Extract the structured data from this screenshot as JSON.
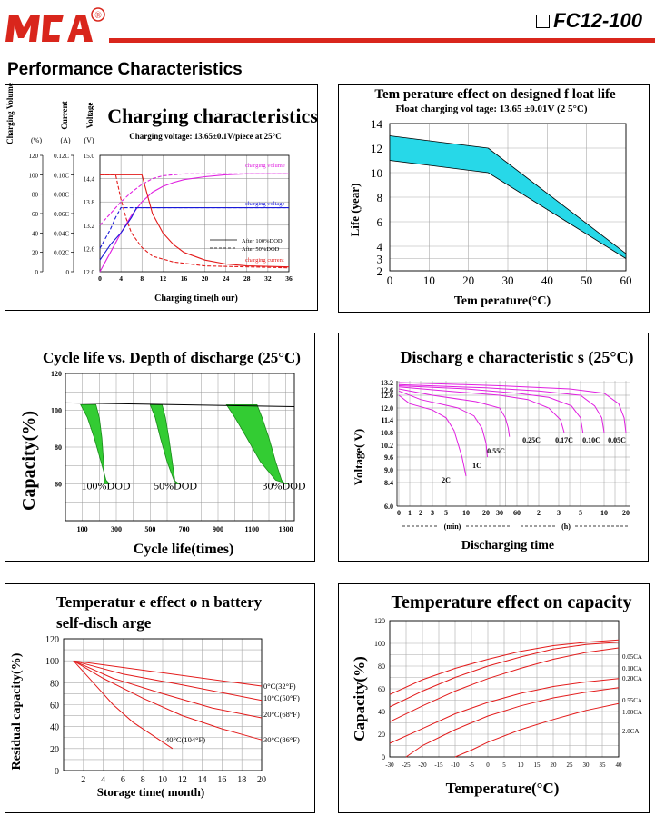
{
  "header": {
    "brand": "MCA",
    "registered": "®",
    "model": "FC12-100"
  },
  "section_title": "Performance Characteristics",
  "colors": {
    "brand_red": "#d9261c",
    "magenta": "#e020e0",
    "blue": "#1a1ad8",
    "red": "#e31c1c",
    "green": "#33cc33",
    "cyan": "#27d8e8"
  },
  "chart_data": [
    {
      "id": "charging",
      "type": "line",
      "title": "Charging characteristics",
      "subtitle": "Charging voltage: 13.65±0.1V/piece at 25°C",
      "xlabel": "Charging time(h our)",
      "axis_heads": [
        "Charging Volume",
        "Current",
        "Voltage"
      ],
      "axis_units": [
        "(%)",
        "(A)",
        "(V)"
      ],
      "xticks": [
        0,
        4,
        8,
        12,
        16,
        20,
        24,
        28,
        32,
        36
      ],
      "xlim": [
        0,
        36
      ],
      "volume_ticks": [
        0,
        20,
        40,
        60,
        80,
        100,
        120
      ],
      "current_ticks": [
        "0",
        "0.02C",
        "0.04C",
        "0.06C",
        "0.08C",
        "0.10C",
        "0.12C"
      ],
      "voltage_ticks": [
        12.0,
        12.6,
        13.2,
        13.8,
        14.4,
        15.0
      ],
      "legend": [
        "After 100%DOD",
        "After 50%DOD"
      ],
      "annotations": [
        "charging volume",
        "charging voltage",
        "charging current"
      ],
      "series": [
        {
          "name": "charging volume",
          "axis": "volume",
          "style": "solid",
          "x": [
            0,
            2,
            4,
            6,
            8,
            10,
            12,
            14,
            16,
            20,
            24,
            28,
            36
          ],
          "y": [
            0,
            20,
            40,
            58,
            72,
            82,
            88,
            92,
            95,
            98,
            100,
            101,
            101
          ]
        },
        {
          "name": "charging volume",
          "axis": "volume",
          "style": "dashed",
          "x": [
            0,
            2,
            4,
            6,
            8,
            10,
            12,
            16,
            20,
            36
          ],
          "y": [
            48,
            60,
            72,
            82,
            90,
            96,
            99,
            101,
            101,
            101
          ]
        },
        {
          "name": "charging voltage",
          "axis": "voltage",
          "style": "solid",
          "x": [
            0,
            2,
            4,
            6,
            7,
            8,
            12,
            16,
            20,
            36
          ],
          "y": [
            12.3,
            12.7,
            13.0,
            13.4,
            13.65,
            13.65,
            13.65,
            13.65,
            13.65,
            13.65
          ]
        },
        {
          "name": "charging voltage",
          "axis": "voltage",
          "style": "dashed",
          "x": [
            0,
            2,
            3,
            4,
            6,
            8,
            12,
            20,
            36
          ],
          "y": [
            12.6,
            13.1,
            13.4,
            13.65,
            13.65,
            13.65,
            13.65,
            13.65,
            13.65
          ]
        },
        {
          "name": "charging current",
          "axis": "current",
          "style": "solid",
          "x": [
            0,
            8,
            9,
            10,
            12,
            14,
            16,
            20,
            24,
            28,
            36
          ],
          "y": [
            0.1,
            0.1,
            0.08,
            0.06,
            0.04,
            0.028,
            0.02,
            0.012,
            0.008,
            0.006,
            0.005
          ]
        },
        {
          "name": "charging current",
          "axis": "current",
          "style": "dashed",
          "x": [
            0,
            3,
            4,
            5,
            6,
            8,
            10,
            14,
            20,
            36
          ],
          "y": [
            0.1,
            0.1,
            0.075,
            0.055,
            0.04,
            0.025,
            0.016,
            0.01,
            0.006,
            0.004
          ]
        }
      ]
    },
    {
      "id": "float_life",
      "type": "area",
      "title": "Tem perature effect on designed f loat life",
      "subtitle": "Float charging vol tage: 13.65 ±0.01V (2 5°C)",
      "xlabel": "Tem perature(°C)",
      "ylabel": "Life (year)",
      "xticks": [
        0,
        10,
        20,
        30,
        40,
        50,
        60
      ],
      "yticks": [
        2,
        3,
        4,
        6,
        8,
        10,
        12,
        14
      ],
      "xlim": [
        0,
        60
      ],
      "ylim": [
        2,
        14
      ],
      "band_upper": {
        "x": [
          0,
          25,
          60
        ],
        "y": [
          13,
          12,
          3.4
        ]
      },
      "band_lower": {
        "x": [
          0,
          25,
          60
        ],
        "y": [
          11,
          10,
          3.0
        ]
      }
    },
    {
      "id": "cycle_life",
      "type": "area",
      "title": "Cycle life vs. Depth of discharge (25°C)",
      "xlabel": "Cycle life(times)",
      "ylabel": "Capacity(%)",
      "xticks": [
        100,
        300,
        500,
        700,
        900,
        1100,
        1300
      ],
      "yticks": [
        60,
        80,
        100,
        120
      ],
      "xlim": [
        0,
        1350
      ],
      "ylim": [
        40,
        120
      ],
      "reference_line": {
        "x": [
          0,
          1350
        ],
        "y": [
          104,
          102
        ]
      },
      "bands": [
        {
          "label": "100%DOD",
          "upper": {
            "x": [
              90,
              130,
              170,
              210,
              240,
              260
            ],
            "y": [
              103,
              96,
              85,
              72,
              62,
              60
            ]
          },
          "lower": {
            "x": [
              180,
              200,
              215,
              225,
              230,
              230
            ],
            "y": [
              103,
              96,
              85,
              72,
              62,
              60
            ]
          }
        },
        {
          "label": "50%DOD",
          "upper": {
            "x": [
              500,
              530,
              560,
              600,
              640,
              670
            ],
            "y": [
              103,
              96,
              85,
              72,
              62,
              60
            ]
          },
          "lower": {
            "x": [
              570,
              590,
              610,
              630,
              645,
              650
            ],
            "y": [
              103,
              96,
              85,
              72,
              62,
              60
            ]
          }
        },
        {
          "label": "30%DOD",
          "upper": {
            "x": [
              950,
              1000,
              1070,
              1150,
              1240,
              1310
            ],
            "y": [
              103,
              96,
              85,
              72,
              62,
              60
            ]
          },
          "lower": {
            "x": [
              1130,
              1160,
              1200,
              1240,
              1275,
              1295
            ],
            "y": [
              103,
              96,
              85,
              72,
              62,
              60
            ]
          }
        }
      ]
    },
    {
      "id": "discharge",
      "type": "line",
      "title": "Discharg e characteristic s (25°C)",
      "xlabel": "Discharging time",
      "ylabel": "Voltage( V)",
      "yticks": [
        6.0,
        8.4,
        9.0,
        9.6,
        10.2,
        10.8,
        11.4,
        12.0,
        12.6,
        13.2
      ],
      "xtick_labels": [
        "0",
        "1",
        "2",
        "3",
        "5",
        "10",
        "20",
        "30",
        "60",
        "2",
        "3",
        "5",
        "10",
        "20"
      ],
      "xunits": [
        "(min)",
        "(h)"
      ],
      "curve_labels": [
        "2C",
        "1C",
        "0.55C",
        "0.25C",
        "0.17C",
        "0.10C",
        "0.05C"
      ],
      "series": [
        {
          "name": "2C",
          "t_min": [
            0,
            1,
            3,
            5,
            7,
            9,
            10
          ],
          "y": [
            12.6,
            12.2,
            11.9,
            11.5,
            10.9,
            9.6,
            8.7
          ]
        },
        {
          "name": "1C",
          "t_min": [
            0,
            2,
            8,
            14,
            18,
            20,
            21
          ],
          "y": [
            12.8,
            12.4,
            12.0,
            11.6,
            11.0,
            10.3,
            9.6
          ]
        },
        {
          "name": "0.55C",
          "t_min": [
            0,
            3,
            15,
            30,
            40,
            45,
            47
          ],
          "y": [
            12.9,
            12.6,
            12.3,
            12.0,
            11.5,
            11.0,
            10.6
          ]
        },
        {
          "name": "0.25C",
          "t_min": [
            0,
            5,
            30,
            90,
            150,
            190,
            210
          ],
          "y": [
            13.0,
            12.8,
            12.6,
            12.4,
            12.0,
            11.4,
            10.8
          ]
        },
        {
          "name": "0.17C",
          "t_min": [
            0,
            10,
            60,
            150,
            250,
            300,
            330
          ],
          "y": [
            13.05,
            12.9,
            12.7,
            12.5,
            12.1,
            11.5,
            10.8
          ]
        },
        {
          "name": "0.10C",
          "t_min": [
            0,
            20,
            120,
            300,
            480,
            570,
            600
          ],
          "y": [
            13.1,
            12.95,
            12.8,
            12.6,
            12.1,
            11.5,
            10.8
          ]
        },
        {
          "name": "0.05C",
          "t_min": [
            0,
            30,
            240,
            600,
            1000,
            1150,
            1200
          ],
          "y": [
            13.2,
            13.05,
            12.9,
            12.7,
            12.2,
            11.5,
            10.8
          ]
        }
      ]
    },
    {
      "id": "self_discharge",
      "type": "line",
      "title": "Temperatur e effect o n battery self-disch arge",
      "xlabel": "Storage time( month)",
      "ylabel": "Residual capacity(%)",
      "xticks": [
        2,
        4,
        6,
        8,
        10,
        12,
        14,
        16,
        18,
        20
      ],
      "yticks": [
        0,
        20,
        40,
        60,
        80,
        100,
        120
      ],
      "xlim": [
        0,
        20
      ],
      "ylim": [
        0,
        120
      ],
      "series": [
        {
          "name": "0°C(32°F)",
          "x": [
            1,
            20
          ],
          "y": [
            100,
            77
          ]
        },
        {
          "name": "10°C(50°F)",
          "x": [
            1,
            6,
            12,
            20
          ],
          "y": [
            100,
            88,
            78,
            64
          ]
        },
        {
          "name": "20°C(68°F)",
          "x": [
            1,
            5,
            10,
            15,
            20
          ],
          "y": [
            100,
            84,
            70,
            57,
            48
          ]
        },
        {
          "name": "30°C(86°F)",
          "x": [
            1,
            4,
            8,
            12,
            16,
            20
          ],
          "y": [
            100,
            84,
            66,
            50,
            38,
            28
          ]
        },
        {
          "name": "40°C(104°F)",
          "x": [
            1,
            3,
            5,
            7,
            9,
            11
          ],
          "y": [
            100,
            80,
            60,
            44,
            32,
            20
          ]
        }
      ],
      "label_ids": [
        "sd-label-0",
        "sd-label-1",
        "sd-label-2",
        "sd-label-3",
        "sd-label-4"
      ]
    },
    {
      "id": "capacity_temp",
      "type": "line",
      "title": "Temperature effect on capacity",
      "xlabel": "Temperature(°C)",
      "ylabel": "Capacity(%)",
      "xticks": [
        -30,
        -25,
        -20,
        -15,
        -10,
        -5,
        0,
        5,
        10,
        15,
        20,
        25,
        30,
        35,
        40
      ],
      "yticks": [
        0,
        20,
        40,
        60,
        80,
        100,
        120
      ],
      "xlim": [
        -30,
        40
      ],
      "ylim": [
        0,
        120
      ],
      "series": [
        {
          "name": "0.05CA",
          "x": [
            -30,
            -20,
            -10,
            0,
            10,
            20,
            30,
            40
          ],
          "y": [
            55,
            68,
            78,
            86,
            93,
            98,
            101,
            103
          ]
        },
        {
          "name": "0.10CA",
          "x": [
            -30,
            -20,
            -10,
            0,
            10,
            20,
            30,
            40
          ],
          "y": [
            44,
            58,
            70,
            80,
            88,
            95,
            99,
            101
          ]
        },
        {
          "name": "0.20CA",
          "x": [
            -30,
            -20,
            -10,
            0,
            10,
            20,
            30,
            40
          ],
          "y": [
            31,
            45,
            58,
            69,
            78,
            86,
            92,
            96
          ]
        },
        {
          "name": "0.55CA",
          "x": [
            -30,
            -20,
            -10,
            0,
            10,
            20,
            30,
            40
          ],
          "y": [
            12,
            25,
            38,
            48,
            56,
            62,
            66,
            69
          ]
        },
        {
          "name": "1.00CA",
          "x": [
            -25,
            -20,
            -10,
            0,
            10,
            20,
            30,
            40
          ],
          "y": [
            0,
            10,
            24,
            36,
            45,
            52,
            57,
            61
          ]
        },
        {
          "name": "2.0CA",
          "x": [
            -10,
            -5,
            0,
            10,
            20,
            30,
            40
          ],
          "y": [
            0,
            6,
            13,
            24,
            33,
            41,
            47
          ]
        }
      ]
    }
  ]
}
